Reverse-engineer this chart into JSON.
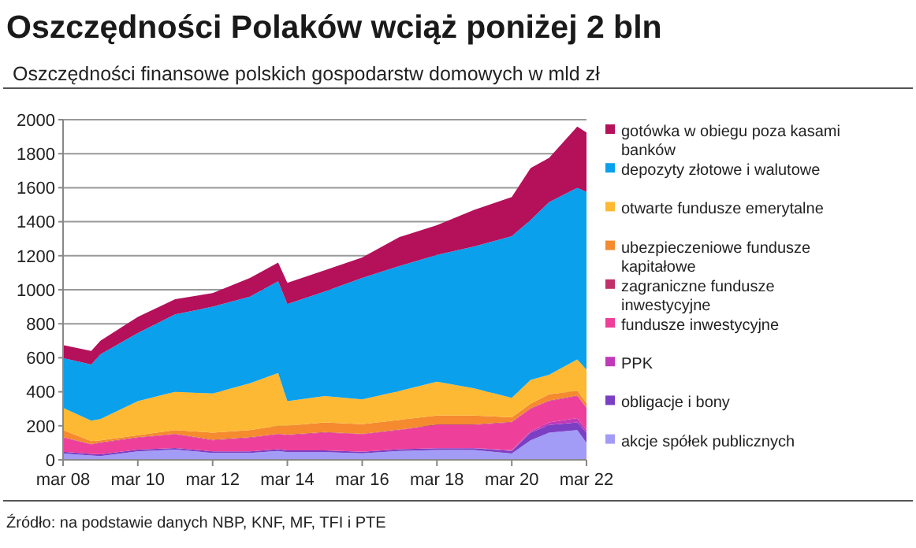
{
  "chart_data": {
    "type": "area",
    "stacked": true,
    "title": "Oszczędności Polaków wciąż poniżej 2 bln",
    "subtitle": "Oszczędności finansowe polskich gospodarstw domowych w mld zł",
    "annotations": [
      "Źródło: na podstawie danych NBP, KNF, MF, TFI i PTE"
    ],
    "x": [
      "2008-03",
      "2008-12",
      "2009-03",
      "2010-03",
      "2011-03",
      "2012-03",
      "2013-03",
      "2013-12",
      "2014-03",
      "2015-03",
      "2016-03",
      "2017-03",
      "2018-03",
      "2019-03",
      "2020-03",
      "2020-09",
      "2021-03",
      "2021-12",
      "2022-03"
    ],
    "xlim": [
      "2008-03",
      "2022-03"
    ],
    "xticks": [
      {
        "value": "2008-03",
        "label": "mar 08"
      },
      {
        "value": "2010-03",
        "label": "mar 10"
      },
      {
        "value": "2012-03",
        "label": "mar 12"
      },
      {
        "value": "2014-03",
        "label": "mar 14"
      },
      {
        "value": "2016-03",
        "label": "mar 16"
      },
      {
        "value": "2018-03",
        "label": "mar 18"
      },
      {
        "value": "2020-03",
        "label": "mar 20"
      },
      {
        "value": "2022-03",
        "label": "mar 22"
      }
    ],
    "ylim": [
      0,
      2000
    ],
    "yticks": [
      0,
      200,
      400,
      600,
      800,
      1000,
      1200,
      1400,
      1600,
      1800,
      2000
    ],
    "grid": "y",
    "legend": "right",
    "series": [
      {
        "name": "akcje spółek publicznych",
        "color": "#a29cf7",
        "values": [
          37,
          25,
          22,
          50,
          60,
          40,
          40,
          52,
          45,
          45,
          38,
          52,
          58,
          58,
          37,
          115,
          160,
          175,
          100
        ]
      },
      {
        "name": "obligacje i bony",
        "color": "#7b3fc4",
        "values": [
          10,
          10,
          10,
          10,
          10,
          10,
          10,
          10,
          10,
          10,
          10,
          10,
          10,
          10,
          15,
          45,
          45,
          45,
          60
        ]
      },
      {
        "name": "PPK",
        "color": "#c03ab8",
        "values": [
          0,
          0,
          0,
          0,
          0,
          0,
          0,
          0,
          0,
          0,
          0,
          0,
          0,
          2,
          5,
          8,
          15,
          25,
          15
        ]
      },
      {
        "name": "fundusze inwestycyjne",
        "color": "#ee3f9a",
        "values": [
          83,
          55,
          68,
          70,
          80,
          65,
          80,
          88,
          90,
          105,
          102,
          113,
          137,
          135,
          163,
          132,
          125,
          130,
          130
        ]
      },
      {
        "name": "zagraniczne fundusze inwestycyjne",
        "color": "#c0306a",
        "values": [
          3,
          3,
          3,
          3,
          3,
          3,
          3,
          3,
          3,
          3,
          3,
          3,
          3,
          3,
          3,
          3,
          3,
          3,
          3
        ]
      },
      {
        "name": "ubezpieczeniowe fundusze kapitałowe",
        "color": "#f58a2e",
        "values": [
          42,
          17,
          12,
          12,
          22,
          42,
          42,
          47,
          52,
          57,
          57,
          57,
          52,
          52,
          27,
          27,
          37,
          27,
          27
        ]
      },
      {
        "name": "otwarte fundusze emerytalne",
        "color": "#fdb933",
        "values": [
          130,
          120,
          125,
          200,
          225,
          230,
          275,
          310,
          145,
          155,
          145,
          170,
          200,
          160,
          115,
          140,
          115,
          185,
          195
        ]
      },
      {
        "name": "depozyty złotowe i walutowe",
        "color": "#0aa0ec",
        "values": [
          293,
          330,
          380,
          400,
          455,
          510,
          510,
          540,
          570,
          615,
          715,
          735,
          745,
          835,
          950,
          940,
          1015,
          1010,
          1045
        ]
      },
      {
        "name": "gotówka w obiegu poza kasami banków",
        "color": "#b5105a",
        "values": [
          77,
          80,
          80,
          95,
          90,
          80,
          110,
          110,
          125,
          125,
          120,
          170,
          175,
          215,
          230,
          305,
          260,
          360,
          350
        ]
      }
    ]
  }
}
